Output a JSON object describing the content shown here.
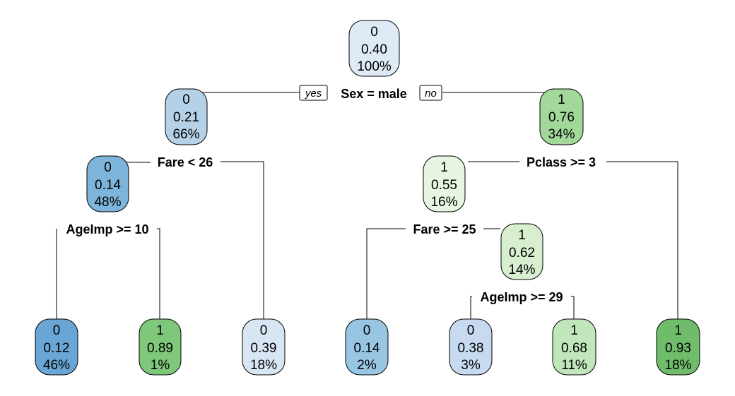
{
  "tree": {
    "nodes": [
      {
        "id": "root",
        "class_label": "0",
        "prob": "0.40",
        "pct": "100%",
        "fill": "#DEEBF7"
      },
      {
        "id": "n2",
        "class_label": "0",
        "prob": "0.21",
        "pct": "66%",
        "fill": "#B4D1E8"
      },
      {
        "id": "n3",
        "class_label": "1",
        "prob": "0.76",
        "pct": "34%",
        "fill": "#A2D99A"
      },
      {
        "id": "n4",
        "class_label": "0",
        "prob": "0.14",
        "pct": "48%",
        "fill": "#7DB4DA"
      },
      {
        "id": "n7",
        "class_label": "1",
        "prob": "0.55",
        "pct": "16%",
        "fill": "#E7F5E1"
      },
      {
        "id": "n14",
        "class_label": "1",
        "prob": "0.62",
        "pct": "14%",
        "fill": "#D7EECF"
      },
      {
        "id": "l1",
        "class_label": "0",
        "prob": "0.12",
        "pct": "46%",
        "fill": "#69A6D5"
      },
      {
        "id": "l2",
        "class_label": "1",
        "prob": "0.89",
        "pct": "1%",
        "fill": "#7FC77A"
      },
      {
        "id": "l3",
        "class_label": "0",
        "prob": "0.39",
        "pct": "18%",
        "fill": "#D8E6F4"
      },
      {
        "id": "l4",
        "class_label": "0",
        "prob": "0.14",
        "pct": "2%",
        "fill": "#97C5E2"
      },
      {
        "id": "l5",
        "class_label": "0",
        "prob": "0.38",
        "pct": "3%",
        "fill": "#C7DAEF"
      },
      {
        "id": "l6",
        "class_label": "1",
        "prob": "0.68",
        "pct": "11%",
        "fill": "#C1E6BB"
      },
      {
        "id": "l7",
        "class_label": "1",
        "prob": "0.93",
        "pct": "18%",
        "fill": "#6FBD6B"
      }
    ],
    "splits": [
      {
        "id": "s_root",
        "label": "Sex = male",
        "yes_label": "yes",
        "no_label": "no"
      },
      {
        "id": "s_n2",
        "label": "Fare < 26"
      },
      {
        "id": "s_n3",
        "label": "Pclass >= 3"
      },
      {
        "id": "s_n4",
        "label": "AgeImp >= 10"
      },
      {
        "id": "s_n7",
        "label": "Fare >= 25"
      },
      {
        "id": "s_n14",
        "label": "AgeImp >= 29"
      }
    ]
  }
}
